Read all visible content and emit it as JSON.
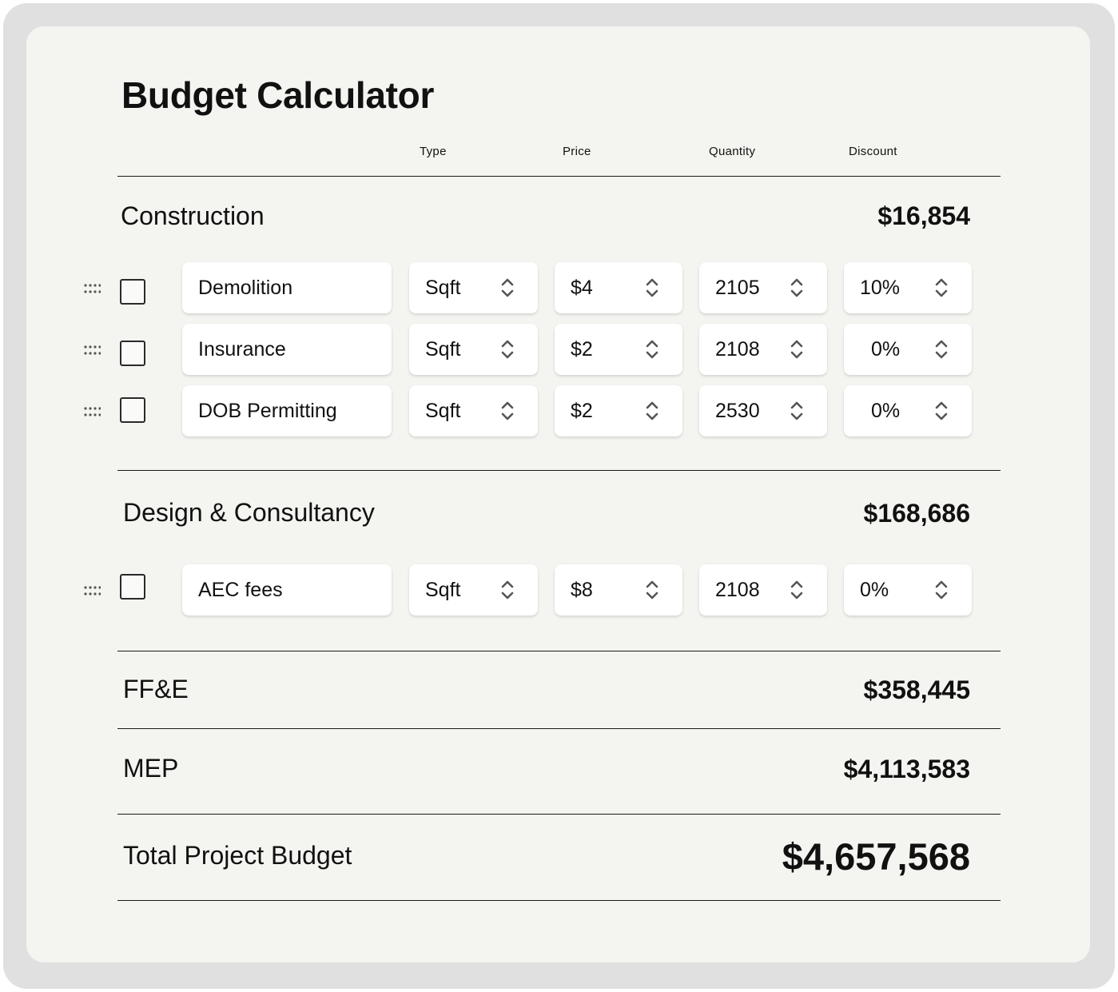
{
  "page": {
    "title": "Budget Calculator"
  },
  "columns": {
    "type": "Type",
    "price": "Price",
    "quantity": "Quantity",
    "discount": "Discount"
  },
  "sections": [
    {
      "title": "Construction",
      "total": "$16,854",
      "rows": [
        {
          "name": "Demolition",
          "type": "Sqft",
          "price": "$4",
          "quantity": "2105",
          "discount": "10%"
        },
        {
          "name": "Insurance",
          "type": "Sqft",
          "price": "$2",
          "quantity": "2108",
          "discount": "0%"
        },
        {
          "name": "DOB Permitting",
          "type": "Sqft",
          "price": "$2",
          "quantity": "2530",
          "discount": "0%"
        }
      ]
    },
    {
      "title": "Design & Consultancy",
      "total": "$168,686",
      "rows": [
        {
          "name": "AEC fees",
          "type": "Sqft",
          "price": "$8",
          "quantity": "2108",
          "discount": "0%"
        }
      ]
    },
    {
      "title": "FF&E",
      "total": "$358,445",
      "rows": []
    },
    {
      "title": "MEP",
      "total": "$4,113,583",
      "rows": []
    }
  ],
  "summary": {
    "label": "Total Project Budget",
    "total": "$4,657,568"
  },
  "icons": {
    "drag": "drag-handle-icon",
    "stepper": "chevron-up-down-icon"
  },
  "colors": {
    "background": "#f4f4f0",
    "frame": "#e0e0e0",
    "field": "#ffffff",
    "text": "#111111"
  }
}
